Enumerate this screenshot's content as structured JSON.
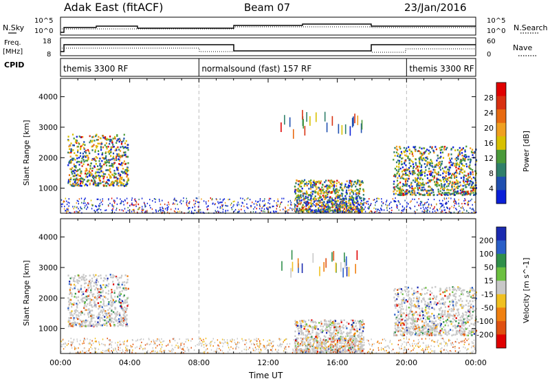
{
  "header": {
    "station": "Adak East (fitACF)",
    "beam": "Beam 07",
    "date": "23/Jan/2016"
  },
  "side_labels": {
    "nsky": "N.Sky",
    "freq": "Freq.",
    "freq_unit": "[MHz]",
    "cpid": "CPID",
    "nsearch": "N.Search",
    "nave": "Nave"
  },
  "top_axes": {
    "noise_ticks": [
      "10^5",
      "10^0"
    ],
    "noise_ticks_right": [
      "10^5",
      "10^0"
    ],
    "freq_ticks": [
      "18",
      "8"
    ],
    "nave_ticks": [
      "60",
      "0"
    ]
  },
  "cpid_segments": [
    {
      "label": "themis 3300 RF",
      "start_h": 0,
      "end_h": 8
    },
    {
      "label": "normalsound (fast) 157 RF",
      "start_h": 8,
      "end_h": 20
    },
    {
      "label": "themis 3300 RF",
      "start_h": 20,
      "end_h": 24
    }
  ],
  "x_axis": {
    "label": "Time UT",
    "ticks": [
      "00:00",
      "04:00",
      "08:00",
      "12:00",
      "16:00",
      "20:00",
      "00:00"
    ],
    "tick_hours": [
      0,
      4,
      8,
      12,
      16,
      20,
      24
    ]
  },
  "colors": {
    "power": [
      "#0a1fd8",
      "#1f4fb0",
      "#2f7f6a",
      "#4a9a3a",
      "#d8c000",
      "#f0a020",
      "#e86a10",
      "#d83010",
      "#e00000"
    ],
    "velocity": [
      "#1a2ab0",
      "#2a5fc8",
      "#2f8f4a",
      "#6cc040",
      "#c8c8c8",
      "#f0c020",
      "#f08010",
      "#e05010",
      "#e00000"
    ]
  },
  "chart_data": [
    {
      "type": "heatmap",
      "panel": "power",
      "ylabel": "Slant Range [km]",
      "yticks": [
        1000,
        2000,
        3000,
        4000
      ],
      "ylim": [
        180,
        4600
      ],
      "colorbar_label": "Power [dB]",
      "colorbar_ticks": [
        "28",
        "24",
        "20",
        "16",
        "12",
        "8",
        "4"
      ],
      "regions": [
        {
          "t0": 0.4,
          "t1": 3.9,
          "r0": 1100,
          "r1": 2800,
          "level": "mixed-high"
        },
        {
          "t0": 13.5,
          "t1": 17.5,
          "r0": 250,
          "r1": 1300,
          "level": "mixed"
        },
        {
          "t0": 19.2,
          "t1": 24,
          "r0": 800,
          "r1": 2400,
          "level": "mixed-high"
        }
      ]
    },
    {
      "type": "heatmap",
      "panel": "velocity",
      "ylabel": "Slant Range [km]",
      "yticks": [
        1000,
        2000,
        3000,
        4000
      ],
      "ylim": [
        180,
        4600
      ],
      "colorbar_label": "Velocity [m s^-1]",
      "colorbar_ticks": [
        "200",
        "100",
        "50",
        "15",
        "-15",
        "-50",
        "-100",
        "-200"
      ],
      "regions": [
        {
          "t0": 0.4,
          "t1": 3.9,
          "r0": 1100,
          "r1": 2800,
          "level": "ground-scatter"
        },
        {
          "t0": 13.5,
          "t1": 17.5,
          "r0": 250,
          "r1": 1300,
          "level": "ground-scatter"
        },
        {
          "t0": 19.2,
          "t1": 24,
          "r0": 800,
          "r1": 2400,
          "level": "ground-scatter"
        }
      ]
    }
  ]
}
